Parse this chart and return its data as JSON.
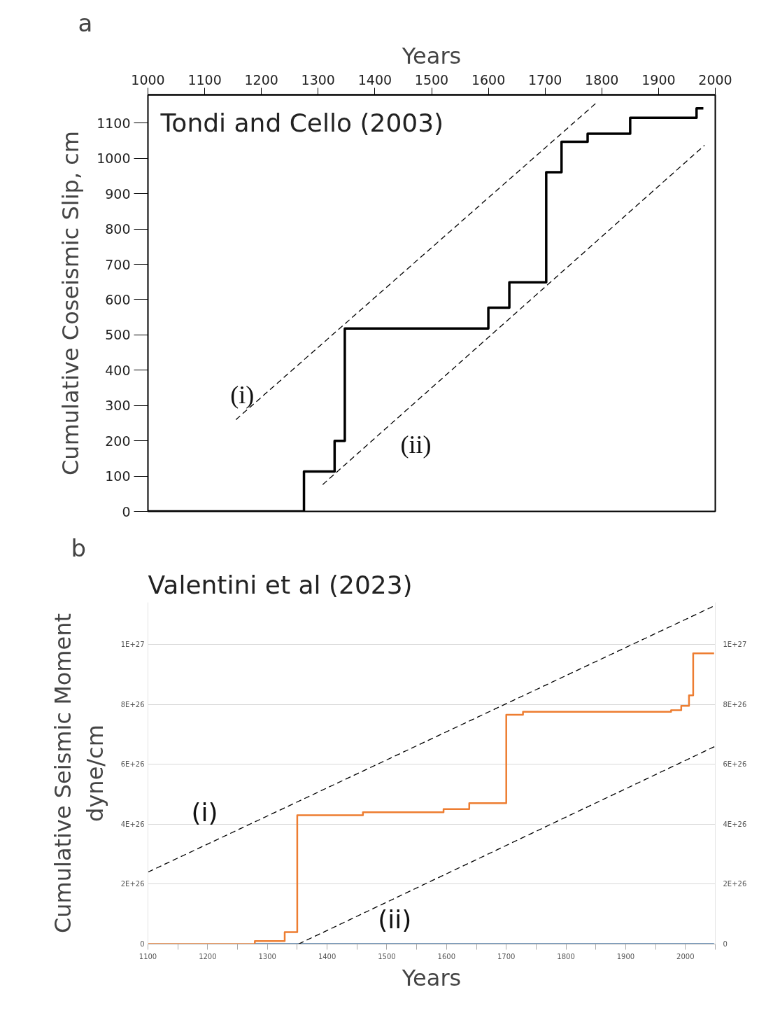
{
  "chart_data": [
    {
      "type": "step",
      "title": "Tondi and Cello (2003)",
      "xlabel": "Years",
      "ylabel": "Cumulative Coseismic Slip, cm",
      "xlim": [
        1000,
        2000
      ],
      "xticks": [
        1000,
        1100,
        1200,
        1300,
        1400,
        1500,
        1600,
        1700,
        1800,
        1900,
        2000
      ],
      "ylim": [
        0,
        1180
      ],
      "yticks": [
        0,
        100,
        200,
        300,
        400,
        500,
        600,
        700,
        800,
        900,
        1000,
        1100
      ],
      "series": [
        {
          "color": "#000000",
          "x": [
            1000,
            1275,
            1329,
            1347,
            1600,
            1637,
            1702,
            1729,
            1775,
            1850,
            1967,
            1979
          ],
          "values": [
            0,
            113,
            200,
            518,
            577,
            649,
            961,
            1047,
            1070,
            1115,
            1142,
            1142
          ]
        },
        {
          "type": "line",
          "color": "#000000",
          "line_style": "dashed",
          "x": [
            1155,
            1793
          ],
          "values": [
            260,
            1161
          ]
        },
        {
          "type": "line",
          "color": "#000000",
          "line_style": "dashed",
          "x": [
            1308,
            1981
          ],
          "values": [
            76,
            1037
          ]
        }
      ],
      "annotations": [
        "a",
        "(i)",
        "(ii)"
      ]
    },
    {
      "type": "step",
      "title": "Valentini et al (2023)",
      "xlabel": "Years",
      "ylabel": "Cumulative Seismic Moment\ndyne/cm",
      "xlim": [
        1100,
        2050
      ],
      "xticks": [
        1100,
        {
          "value": 1150,
          "label": null
        },
        1200,
        {
          "value": 1250,
          "label": null
        },
        1300,
        {
          "value": 1350,
          "label": null
        },
        1400,
        {
          "value": 1450,
          "label": null
        },
        1500,
        {
          "value": 1550,
          "label": null
        },
        1600,
        {
          "value": 1650,
          "label": null
        },
        1700,
        {
          "value": 1750,
          "label": null
        },
        1800,
        {
          "value": 1850,
          "label": null
        },
        1900,
        {
          "value": 1950,
          "label": null
        },
        2000,
        {
          "value": 2050,
          "label": null
        }
      ],
      "ylim": [
        0,
        1.14e+27
      ],
      "yticks": [
        {
          "value": 0,
          "label": "0"
        },
        {
          "value": 2e+26,
          "label": "2E+26"
        },
        {
          "value": 4e+26,
          "label": "4E+26"
        },
        {
          "value": 6e+26,
          "label": "6E+26"
        },
        {
          "value": 8e+26,
          "label": "8E+26"
        },
        {
          "value": 1e+27,
          "label": "1E+27"
        }
      ],
      "y2lim": [
        0,
        1.14e+27
      ],
      "y2ticks": [
        {
          "value": 0,
          "label": "0"
        },
        {
          "value": 2e+26,
          "label": "2E+26"
        },
        {
          "value": 4e+26,
          "label": "4E+26"
        },
        {
          "value": 6e+26,
          "label": "6E+26"
        },
        {
          "value": 8e+26,
          "label": "8E+26"
        },
        {
          "value": 1e+27,
          "label": "1E+27"
        }
      ],
      "grid": "y",
      "series": [
        {
          "color": "#ed7d31",
          "x": [
            1100,
            1279,
            1329,
            1350,
            1460,
            1595,
            1638,
            1700,
            1728,
            1976,
            1993,
            2006,
            2013,
            2048
          ],
          "values": [
            0,
            1e+25,
            4e+25,
            4.3e+26,
            4.4e+26,
            4.5e+26,
            4.7e+26,
            7.65e+26,
            7.75e+26,
            7.8e+26,
            7.95e+26,
            8.3e+26,
            9.7e+26,
            9.7e+26
          ]
        },
        {
          "type": "line",
          "color": "#4a7bab",
          "x": [
            1280,
            2048
          ],
          "values": [
            0,
            0
          ]
        },
        {
          "type": "line",
          "color": "#000000",
          "line_style": "dashed",
          "x": [
            1100,
            2050
          ],
          "values": [
            2.4e+26,
            1.13e+27
          ]
        },
        {
          "type": "line",
          "color": "#000000",
          "line_style": "dashed",
          "x": [
            1352,
            2050
          ],
          "values": [
            0,
            6.6e+26
          ]
        }
      ],
      "annotations": [
        "b",
        "(i)",
        "(ii)"
      ]
    }
  ]
}
